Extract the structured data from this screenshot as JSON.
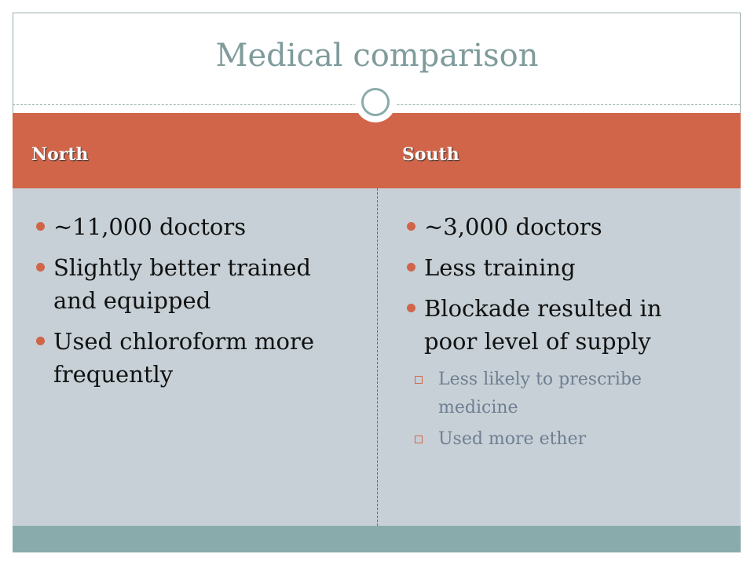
{
  "title": "Medical comparison",
  "columns": [
    {
      "heading": "North",
      "bullets": [
        {
          "text": "~11,000 doctors"
        },
        {
          "text": "Slightly better trained and equipped"
        },
        {
          "text": "Used chloroform more frequently"
        }
      ]
    },
    {
      "heading": "South",
      "bullets": [
        {
          "text": "~3,000 doctors"
        },
        {
          "text": "Less training"
        },
        {
          "text": "Blockade resulted in poor level of supply",
          "sub": [
            "Less likely to prescribe medicine",
            "Used more ether"
          ]
        }
      ]
    }
  ]
}
